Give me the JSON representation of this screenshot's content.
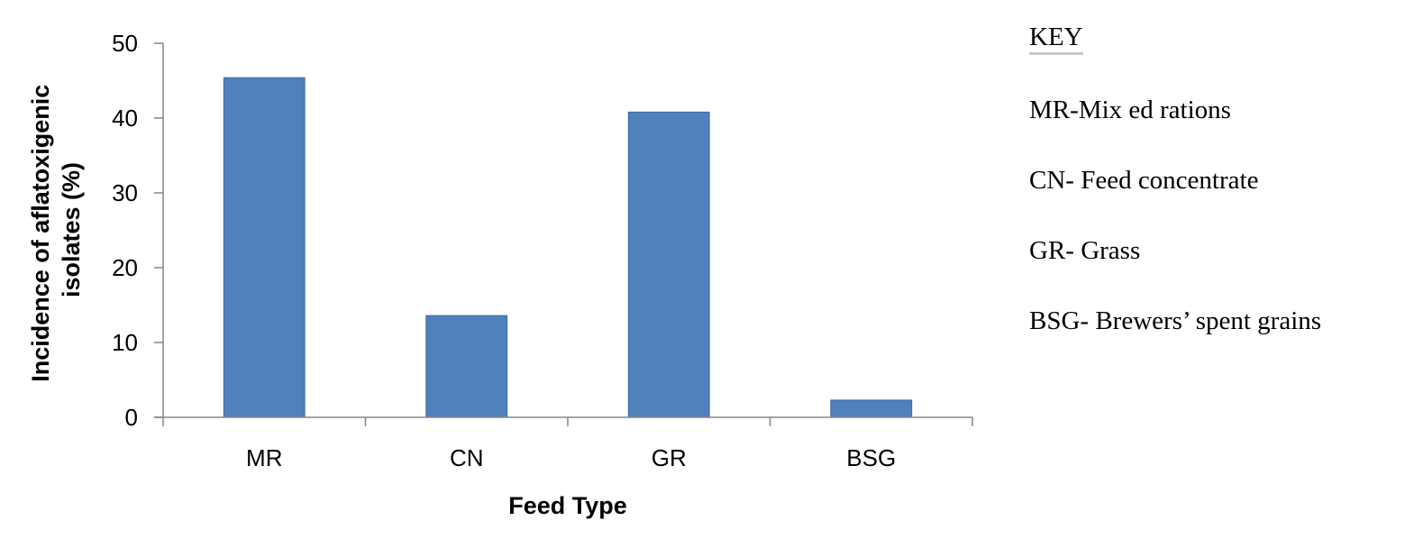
{
  "chart_data": {
    "type": "bar",
    "categories": [
      "MR",
      "CN",
      "GR",
      "BSG"
    ],
    "values": [
      45.4,
      13.6,
      40.8,
      2.3
    ],
    "xlabel": "Feed Type",
    "ylabel_lines": [
      "Incidence of aflatoxigenic",
      "isolates (%)"
    ],
    "ylim": [
      0,
      50
    ],
    "yticks": [
      0,
      10,
      20,
      30,
      40,
      50
    ],
    "grid": false,
    "legend": "none",
    "bar_color": "#4f81bd",
    "bar_edge_color": "#3b6aa3"
  },
  "key": {
    "title": "KEY",
    "items": [
      "MR-Mix ed rations",
      "CN- Feed concentrate",
      "GR- Grass",
      "BSG- Brewers’ spent grains"
    ]
  }
}
